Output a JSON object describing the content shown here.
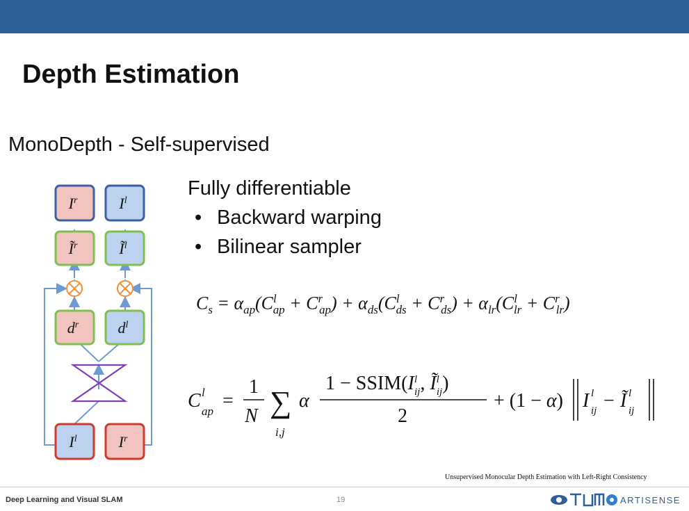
{
  "slide": {
    "title": "Depth Estimation",
    "subtitle": "MonoDepth - Self-supervised",
    "points": [
      "Fully differentiable",
      "Backward warping",
      "Bilinear sampler"
    ],
    "citation": "Unsupervised Monocular Depth Estimation with Left-Right Consistency",
    "footer_left": "Deep Learning and Visual SLAM",
    "page_number": "19",
    "logo_text": "ARTISENSE"
  },
  "diagram": {
    "top_labels": [
      "I",
      "I"
    ],
    "top_sups": [
      "r",
      "l"
    ],
    "warped_labels": [
      "Ĩ",
      "Ĩ"
    ],
    "warped_sups": [
      "r",
      "l"
    ],
    "disp_labels": [
      "d",
      "d"
    ],
    "disp_sups": [
      "r",
      "l"
    ],
    "input_labels": [
      "I",
      "I"
    ],
    "input_sups": [
      "l",
      "r"
    ],
    "colors": {
      "red_fill": "#f2c4c0",
      "red_stroke": "#cc3b2b",
      "blue_fill": "#bcd2ee",
      "blue_stroke": "#3a5fa8",
      "green_stroke": "#7fbf4d",
      "orange": "#f0913a",
      "purple": "#7e3fb8",
      "arrow": "#6e9ad4"
    }
  },
  "colors": {
    "top_bar": "#2f5f99"
  }
}
